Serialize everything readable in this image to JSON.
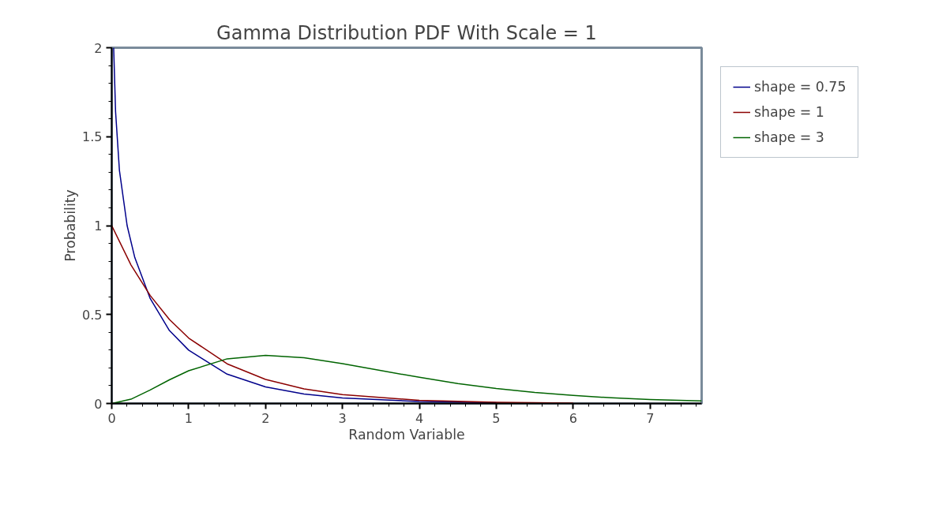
{
  "chart_data": {
    "type": "line",
    "title": "Gamma Distribution PDF With Scale = 1",
    "xlabel": "Random Variable",
    "ylabel": "Probability",
    "xlim": [
      0,
      7.67
    ],
    "ylim": [
      0,
      2
    ],
    "xticks": [
      0,
      1,
      2,
      3,
      4,
      5,
      6,
      7
    ],
    "yticks": [
      0,
      {
        "value": 0.5,
        "label": "0.5"
      },
      1,
      {
        "value": 1.5,
        "label": "1.5"
      },
      2
    ],
    "grid": false,
    "legend": "right",
    "line_style": "solid",
    "marker": "none",
    "series": [
      {
        "name": "shape = 0.75",
        "color": "#00008b",
        "x": [
          0.025,
          0.05,
          0.1,
          0.2,
          0.3,
          0.5,
          0.75,
          1,
          1.5,
          2,
          2.5,
          3,
          4,
          5
        ],
        "values": [
          2.0,
          1.64,
          1.31,
          1.0,
          0.82,
          0.59,
          0.41,
          0.3,
          0.165,
          0.093,
          0.053,
          0.031,
          0.011,
          0.004
        ]
      },
      {
        "name": "shape = 1",
        "color": "#8b0000",
        "x": [
          0,
          0.25,
          0.5,
          0.75,
          1,
          1.5,
          2,
          2.5,
          3,
          4,
          5,
          6
        ],
        "values": [
          1.0,
          0.779,
          0.607,
          0.472,
          0.368,
          0.223,
          0.135,
          0.082,
          0.05,
          0.018,
          0.007,
          0.002
        ]
      },
      {
        "name": "shape = 3",
        "color": "#006400",
        "x": [
          0,
          0.25,
          0.5,
          0.75,
          1,
          1.5,
          2,
          2.5,
          3,
          3.5,
          4,
          4.5,
          5,
          5.5,
          6,
          6.5,
          7,
          7.67
        ],
        "values": [
          0,
          0.024,
          0.076,
          0.133,
          0.184,
          0.251,
          0.271,
          0.257,
          0.224,
          0.185,
          0.147,
          0.112,
          0.084,
          0.062,
          0.045,
          0.032,
          0.022,
          0.014
        ]
      }
    ]
  }
}
